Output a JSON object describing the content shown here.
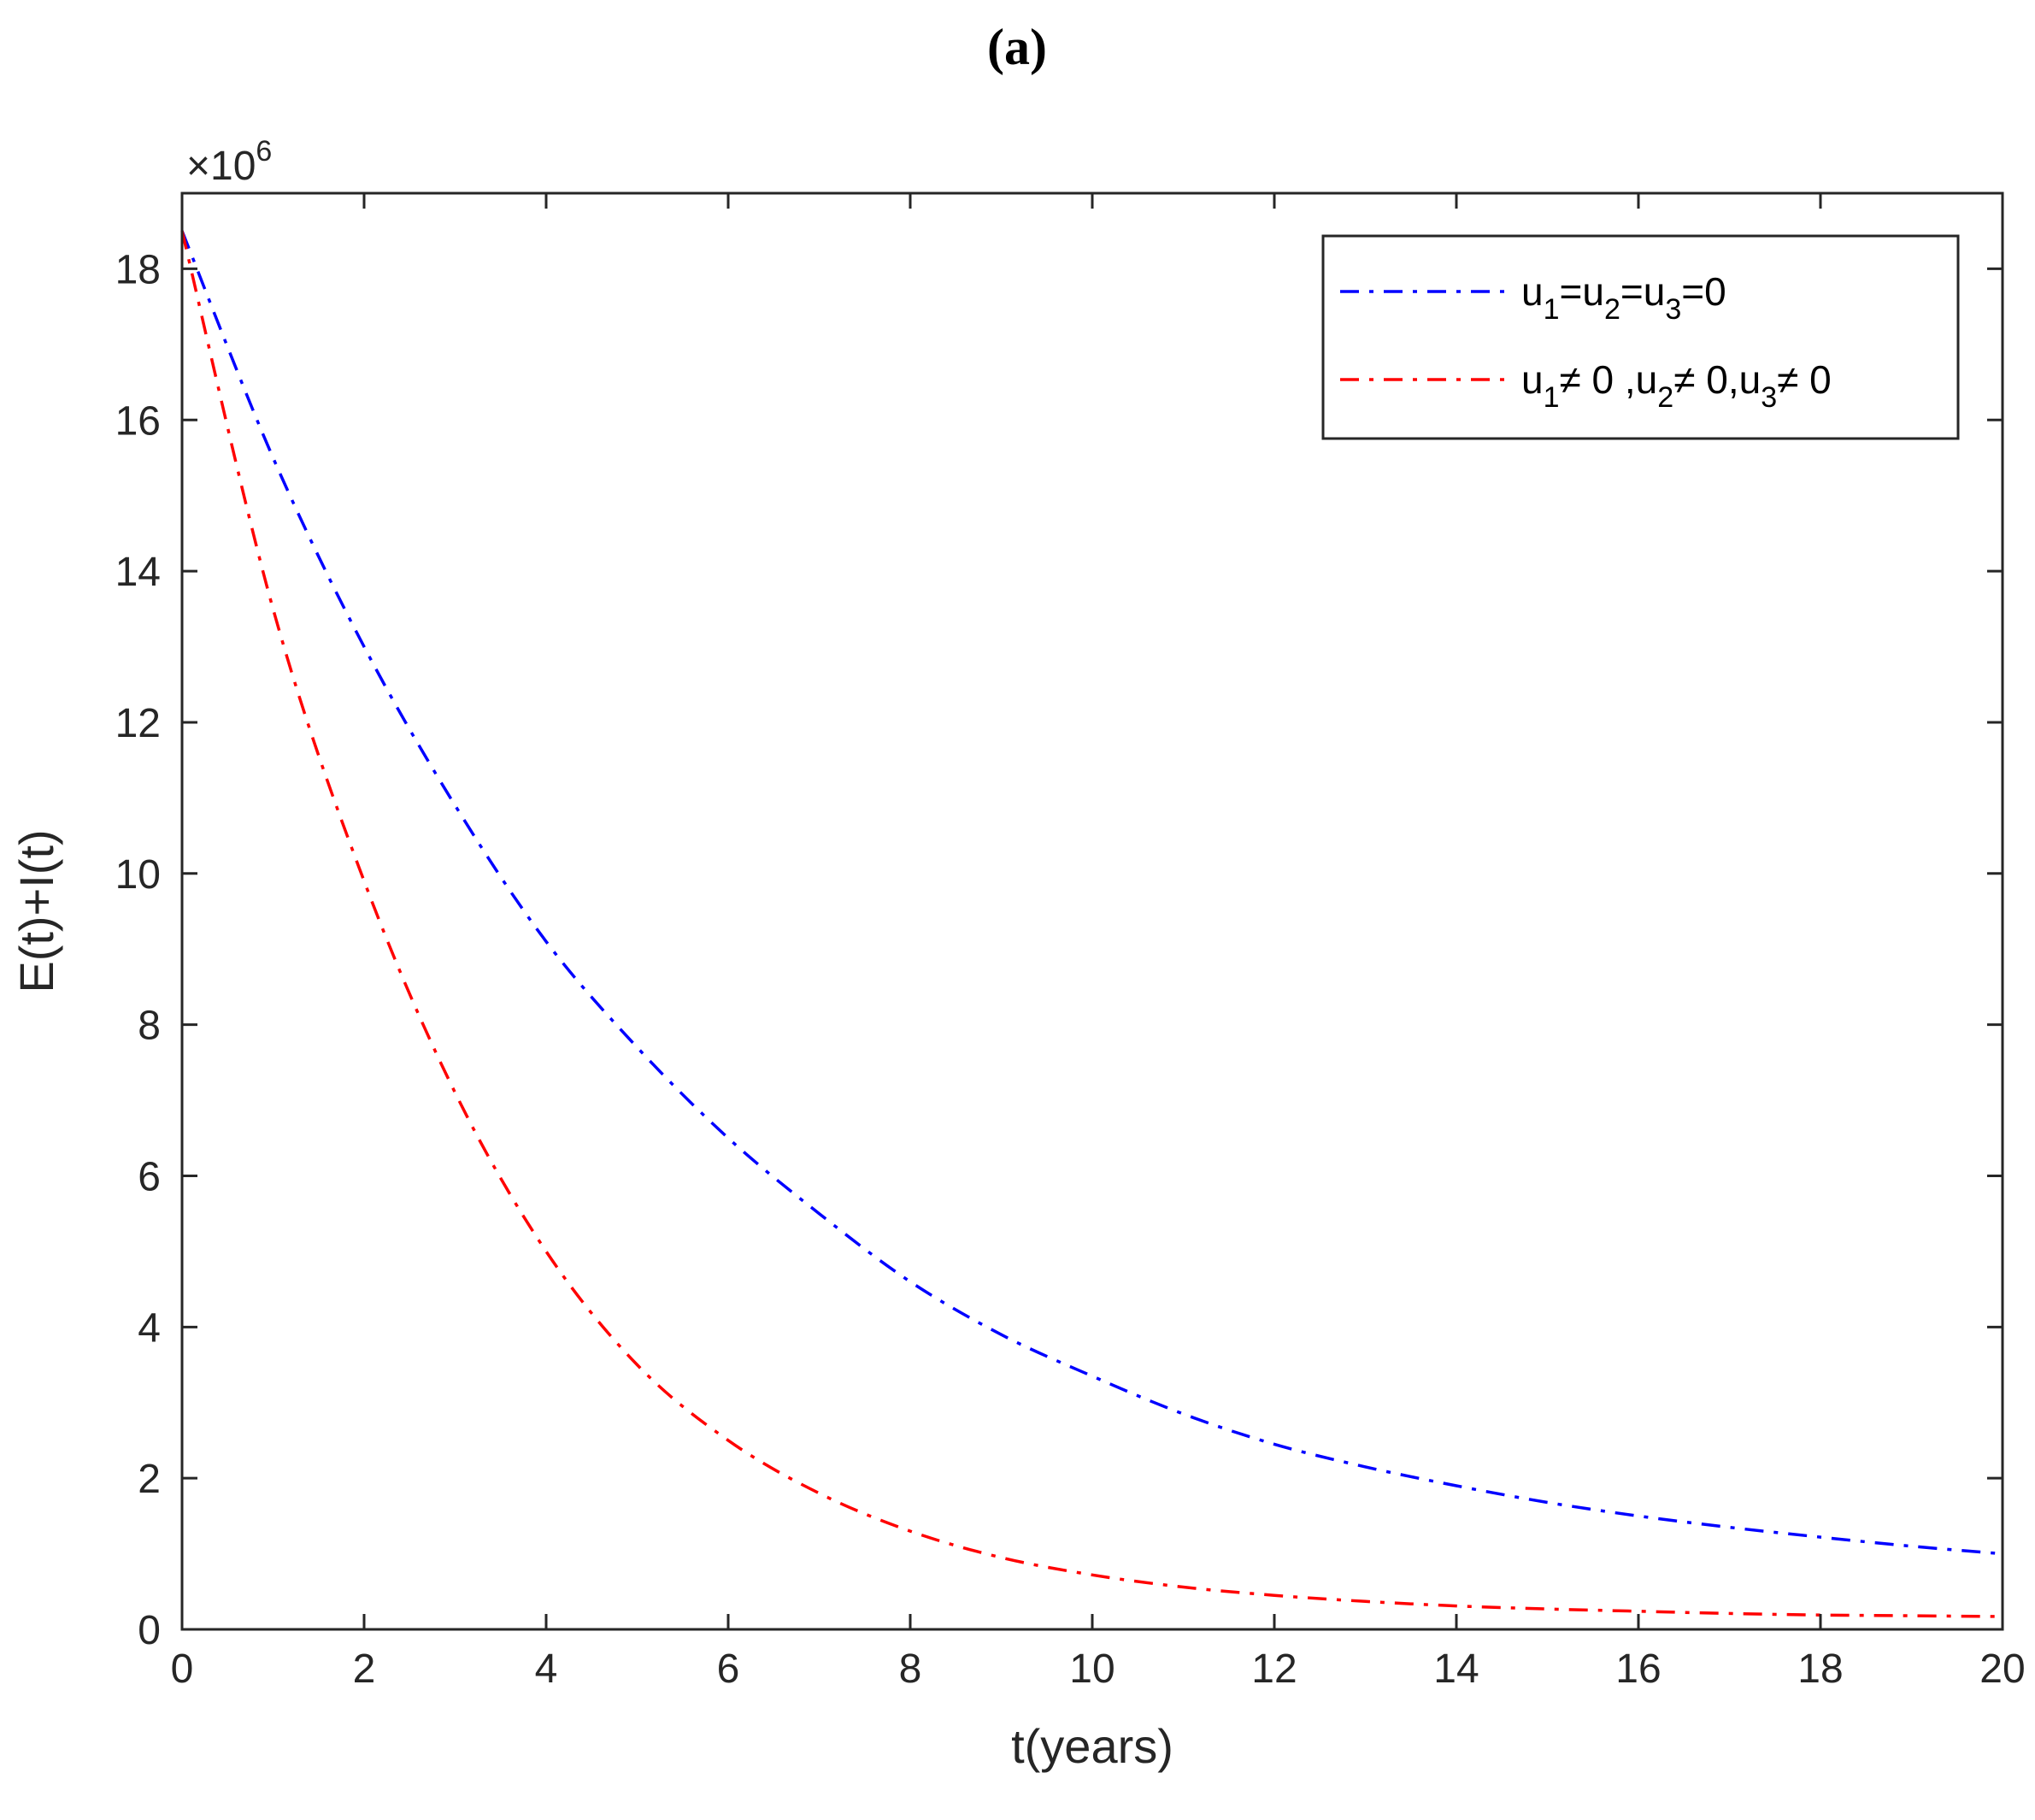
{
  "chart_data": {
    "type": "line",
    "title": "(a)",
    "xlabel": "t(years)",
    "ylabel": "E(t)+I(t)",
    "xlim": [
      0,
      20
    ],
    "ylim": [
      0,
      19
    ],
    "y_exponent": {
      "base": "×10",
      "power": "6"
    },
    "xticks": [
      "0",
      "2",
      "4",
      "6",
      "8",
      "10",
      "12",
      "14",
      "16",
      "18",
      "20"
    ],
    "yticks": [
      "0",
      "2",
      "4",
      "6",
      "8",
      "10",
      "12",
      "14",
      "16",
      "18"
    ],
    "grid": false,
    "legend_position": "top-right",
    "legend": [
      {
        "color": "#0000FF",
        "parts": [
          {
            "t": "u"
          },
          {
            "t": "1",
            "sub": true
          },
          {
            "t": "=u"
          },
          {
            "t": "2",
            "sub": true
          },
          {
            "t": "=u"
          },
          {
            "t": "3",
            "sub": true
          },
          {
            "t": "=0"
          }
        ]
      },
      {
        "color": "#FF0000",
        "parts": [
          {
            "t": "u"
          },
          {
            "t": "1",
            "sub": true
          },
          {
            "t": "≠ 0 ,u"
          },
          {
            "t": "2",
            "sub": true
          },
          {
            "t": "≠ 0,u"
          },
          {
            "t": "3",
            "sub": true
          },
          {
            "t": "≠ 0"
          }
        ]
      }
    ],
    "series": [
      {
        "color": "#0000FF",
        "x": [
          0,
          1,
          2,
          3,
          4,
          5,
          6,
          7,
          8,
          9,
          10,
          11,
          12,
          13,
          14,
          15,
          16,
          17,
          18,
          19,
          20
        ],
        "y": [
          18.5,
          15.5,
          13.0,
          10.9,
          9.1,
          7.7,
          6.5,
          5.5,
          4.6,
          3.9,
          3.35,
          2.85,
          2.45,
          2.15,
          1.9,
          1.68,
          1.5,
          1.35,
          1.22,
          1.1,
          1.0
        ]
      },
      {
        "color": "#FF0000",
        "x": [
          0,
          1,
          2,
          3,
          4,
          5,
          6,
          7,
          8,
          9,
          10,
          11,
          12,
          13,
          14,
          15,
          16,
          17,
          18,
          19,
          20
        ],
        "y": [
          18.5,
          13.5,
          9.9,
          7.1,
          5.0,
          3.5,
          2.5,
          1.8,
          1.3,
          0.95,
          0.72,
          0.56,
          0.45,
          0.37,
          0.31,
          0.27,
          0.24,
          0.21,
          0.19,
          0.18,
          0.17
        ]
      }
    ]
  }
}
